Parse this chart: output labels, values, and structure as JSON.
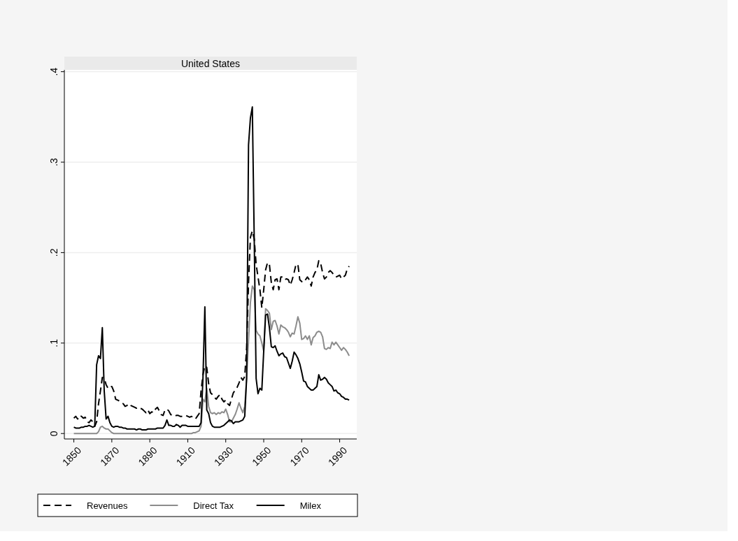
{
  "chart_data": {
    "type": "line",
    "title": "United States",
    "x": [
      1850,
      1851,
      1852,
      1853,
      1854,
      1855,
      1856,
      1857,
      1858,
      1859,
      1860,
      1861,
      1862,
      1863,
      1864,
      1865,
      1866,
      1867,
      1868,
      1869,
      1870,
      1871,
      1872,
      1873,
      1874,
      1875,
      1876,
      1877,
      1878,
      1879,
      1880,
      1881,
      1882,
      1883,
      1884,
      1885,
      1886,
      1887,
      1888,
      1889,
      1890,
      1891,
      1892,
      1893,
      1894,
      1895,
      1896,
      1897,
      1898,
      1899,
      1900,
      1901,
      1902,
      1903,
      1904,
      1905,
      1906,
      1907,
      1908,
      1909,
      1910,
      1911,
      1912,
      1913,
      1914,
      1915,
      1916,
      1917,
      1918,
      1919,
      1920,
      1921,
      1922,
      1923,
      1924,
      1925,
      1926,
      1927,
      1928,
      1929,
      1930,
      1931,
      1932,
      1933,
      1934,
      1935,
      1936,
      1937,
      1938,
      1939,
      1940,
      1941,
      1942,
      1943,
      1944,
      1945,
      1946,
      1947,
      1948,
      1949,
      1950,
      1951,
      1952,
      1953,
      1954,
      1955,
      1956,
      1957,
      1958,
      1959,
      1960,
      1961,
      1962,
      1963,
      1964,
      1965,
      1966,
      1967,
      1968,
      1969,
      1970,
      1971,
      1972,
      1973,
      1974,
      1975,
      1976,
      1977,
      1978,
      1979,
      1980,
      1981,
      1982,
      1983,
      1984,
      1985,
      1986,
      1987,
      1988,
      1989,
      1990,
      1991,
      1992,
      1993,
      1994,
      1995
    ],
    "series": [
      {
        "name": "Revenues",
        "color": "#000000",
        "line_style": "dashed",
        "values": [
          0.017,
          0.019,
          0.016,
          0.02,
          0.019,
          0.017,
          0.018,
          0.013,
          0.012,
          0.015,
          0.013,
          0.008,
          0.013,
          0.033,
          0.047,
          0.062,
          0.061,
          0.054,
          0.05,
          0.052,
          0.052,
          0.047,
          0.038,
          0.037,
          0.036,
          0.034,
          0.033,
          0.03,
          0.031,
          0.033,
          0.031,
          0.03,
          0.029,
          0.028,
          0.029,
          0.028,
          0.027,
          0.025,
          0.023,
          0.026,
          0.022,
          0.024,
          0.023,
          0.027,
          0.029,
          0.025,
          0.021,
          0.02,
          0.026,
          0.027,
          0.025,
          0.021,
          0.02,
          0.019,
          0.02,
          0.02,
          0.019,
          0.019,
          0.019,
          0.02,
          0.019,
          0.018,
          0.019,
          0.017,
          0.016,
          0.019,
          0.022,
          0.047,
          0.065,
          0.075,
          0.073,
          0.055,
          0.045,
          0.043,
          0.04,
          0.038,
          0.041,
          0.043,
          0.038,
          0.035,
          0.037,
          0.033,
          0.031,
          0.038,
          0.045,
          0.048,
          0.051,
          0.056,
          0.062,
          0.059,
          0.063,
          0.094,
          0.167,
          0.217,
          0.224,
          0.215,
          0.187,
          0.173,
          0.159,
          0.139,
          0.159,
          0.181,
          0.189,
          0.187,
          0.167,
          0.159,
          0.17,
          0.171,
          0.159,
          0.173,
          0.173,
          0.17,
          0.171,
          0.17,
          0.164,
          0.17,
          0.178,
          0.187,
          0.187,
          0.17,
          0.168,
          0.167,
          0.17,
          0.173,
          0.17,
          0.163,
          0.173,
          0.178,
          0.181,
          0.191,
          0.188,
          0.178,
          0.171,
          0.173,
          0.178,
          0.18,
          0.178,
          0.175,
          0.173,
          0.174,
          0.175,
          0.171,
          0.173,
          0.175,
          0.182,
          0.185
        ]
      },
      {
        "name": "Direct Tax",
        "color": "#8c8c8c",
        "line_style": "solid",
        "values": [
          0,
          0,
          0,
          0,
          0,
          0,
          0,
          0,
          0,
          0,
          0,
          0,
          0,
          0.002,
          0.007,
          0.008,
          0.006,
          0.005,
          0.005,
          0.003,
          0.001,
          0,
          0,
          0,
          0,
          0,
          0,
          0,
          0,
          0,
          0,
          0,
          0,
          0,
          0,
          0,
          0,
          0,
          0,
          0,
          0,
          0,
          0,
          0,
          0,
          0,
          0,
          0,
          0,
          0,
          0,
          0,
          0,
          0,
          0,
          0,
          0,
          0,
          0,
          0,
          0,
          0,
          0,
          0.001,
          0.001,
          0.002,
          0.003,
          0.008,
          0.038,
          0.035,
          0.05,
          0.03,
          0.023,
          0.022,
          0.023,
          0.021,
          0.023,
          0.022,
          0.024,
          0.023,
          0.027,
          0.021,
          0.013,
          0.013,
          0.017,
          0.021,
          0.027,
          0.034,
          0.028,
          0.023,
          0.03,
          0.061,
          0.103,
          0.145,
          0.163,
          0.159,
          0.114,
          0.11,
          0.108,
          0.1,
          0.091,
          0.138,
          0.136,
          0.133,
          0.115,
          0.124,
          0.125,
          0.119,
          0.11,
          0.12,
          0.118,
          0.117,
          0.115,
          0.112,
          0.107,
          0.111,
          0.11,
          0.119,
          0.129,
          0.122,
          0.104,
          0.105,
          0.108,
          0.104,
          0.108,
          0.098,
          0.106,
          0.108,
          0.112,
          0.113,
          0.112,
          0.107,
          0.094,
          0.093,
          0.095,
          0.094,
          0.101,
          0.098,
          0.101,
          0.098,
          0.095,
          0.092,
          0.095,
          0.093,
          0.09,
          0.086
        ]
      },
      {
        "name": "Milex",
        "color": "#000000",
        "line_style": "solid",
        "values": [
          0.007,
          0.006,
          0.006,
          0.006,
          0.007,
          0.007,
          0.008,
          0.008,
          0.009,
          0.008,
          0.007,
          0.008,
          0.076,
          0.086,
          0.083,
          0.117,
          0.047,
          0.016,
          0.019,
          0.012,
          0.008,
          0.007,
          0.008,
          0.008,
          0.007,
          0.007,
          0.006,
          0.006,
          0.005,
          0.005,
          0.005,
          0.005,
          0.005,
          0.004,
          0.005,
          0.005,
          0.004,
          0.004,
          0.004,
          0.005,
          0.005,
          0.005,
          0.005,
          0.005,
          0.006,
          0.006,
          0.006,
          0.006,
          0.009,
          0.015,
          0.009,
          0.009,
          0.008,
          0.008,
          0.01,
          0.009,
          0.007,
          0.009,
          0.009,
          0.009,
          0.008,
          0.008,
          0.008,
          0.008,
          0.008,
          0.008,
          0.008,
          0.012,
          0.061,
          0.14,
          0.026,
          0.022,
          0.012,
          0.008,
          0.007,
          0.007,
          0.007,
          0.007,
          0.008,
          0.009,
          0.011,
          0.013,
          0.015,
          0.014,
          0.011,
          0.013,
          0.013,
          0.013,
          0.014,
          0.015,
          0.019,
          0.061,
          0.319,
          0.349,
          0.361,
          0.215,
          0.061,
          0.044,
          0.05,
          0.048,
          0.091,
          0.131,
          0.132,
          0.117,
          0.096,
          0.095,
          0.097,
          0.091,
          0.086,
          0.088,
          0.089,
          0.085,
          0.084,
          0.078,
          0.072,
          0.08,
          0.09,
          0.087,
          0.083,
          0.077,
          0.068,
          0.058,
          0.057,
          0.052,
          0.05,
          0.048,
          0.048,
          0.05,
          0.052,
          0.065,
          0.059,
          0.06,
          0.062,
          0.06,
          0.056,
          0.054,
          0.052,
          0.047,
          0.048,
          0.045,
          0.044,
          0.041,
          0.04,
          0.038,
          0.038,
          0.037
        ]
      }
    ],
    "xlim": [
      1845,
      1999
    ],
    "xticks": [
      1850,
      1870,
      1890,
      1910,
      1930,
      1950,
      1970,
      1990
    ],
    "ylim": [
      -0.006,
      0.402
    ],
    "yticks": [
      {
        "value": 0,
        "label": "0"
      },
      {
        "value": 0.1,
        "label": ".1"
      },
      {
        "value": 0.2,
        "label": ".2"
      },
      {
        "value": 0.3,
        "label": ".3"
      },
      {
        "value": 0.4,
        "label": ".4"
      }
    ],
    "grid": "y",
    "legend": "bottom"
  }
}
